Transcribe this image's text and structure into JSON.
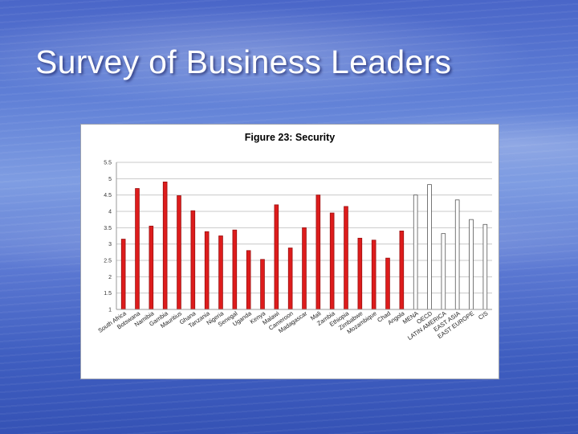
{
  "slide": {
    "title": "Survey of Business Leaders"
  },
  "colors": {
    "bar_red": "#dd1c1c",
    "bar_outline": "#555555",
    "region_fill": "#ffffff"
  },
  "chart_data": {
    "type": "bar",
    "title": "Figure 23: Security",
    "xlabel": "",
    "ylabel": "",
    "ylim": [
      1,
      5.5
    ],
    "yticks": [
      "1",
      "1.5",
      "2",
      "2.5",
      "3",
      "3.5",
      "4",
      "4.5",
      "5",
      "5.5"
    ],
    "grid": true,
    "legend": "none",
    "categories": [
      "South Africa",
      "Botswana",
      "Namibia",
      "Gambia",
      "Mauritius",
      "Ghana",
      "Tanzania",
      "Nigeria",
      "Senegal",
      "Uganda",
      "Kenya",
      "Malawi",
      "Cameroon",
      "Madagascar",
      "Mali",
      "Zambia",
      "Ethiopia",
      "Zimbabwe",
      "Mozambique",
      "Chad",
      "Angola",
      "MENA",
      "OECD",
      "LATIN AMERICA",
      "EAST ASIA",
      "EAST EUROPE",
      "CIS"
    ],
    "values": [
      3.15,
      4.7,
      3.55,
      4.9,
      4.48,
      4.02,
      3.38,
      3.25,
      3.43,
      2.8,
      2.53,
      4.2,
      2.88,
      3.5,
      4.5,
      3.95,
      4.15,
      3.18,
      3.12,
      2.57,
      3.4,
      4.5,
      4.82,
      3.32,
      4.35,
      3.75,
      3.6
    ],
    "group": [
      "africa",
      "africa",
      "africa",
      "africa",
      "africa",
      "africa",
      "africa",
      "africa",
      "africa",
      "africa",
      "africa",
      "africa",
      "africa",
      "africa",
      "africa",
      "africa",
      "africa",
      "africa",
      "africa",
      "africa",
      "africa",
      "region",
      "region",
      "region",
      "region",
      "region",
      "region"
    ]
  }
}
